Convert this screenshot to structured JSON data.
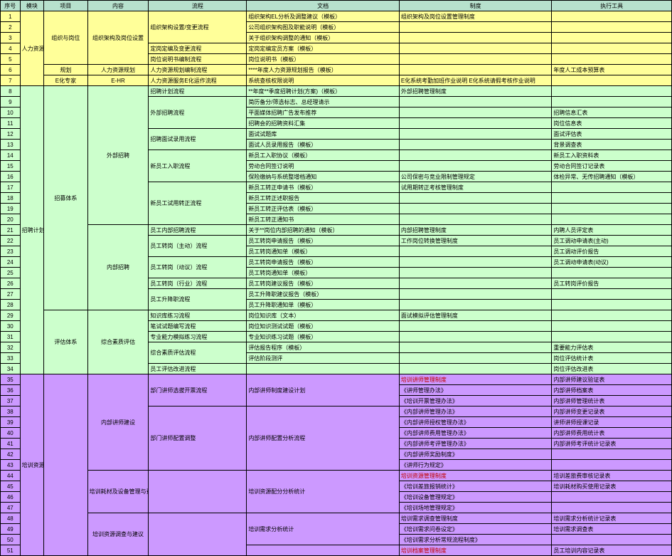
{
  "header": {
    "seq": "序号",
    "mod": "模块",
    "proj": "项目",
    "cont": "内容",
    "flow": "流程",
    "doc": "文档",
    "sys": "制度",
    "tool": "执行工具"
  },
  "colors": {
    "header_bg": "#b7e1cd",
    "yellow": "#ffff99",
    "green": "#ccffcc",
    "purple": "#cc99ff",
    "blue": "#cce5ff",
    "gray": "#d9d9d9",
    "red_text": "#c00000",
    "border": "#000000"
  },
  "blocks": {
    "block1": {
      "mod": "人力资源规划",
      "rows": [
        {
          "seq": "1",
          "proj": "组织与岗位",
          "cont": "组织架构及岗位设置",
          "flow": "组织架构设置/变更流程",
          "doc": "组织架构EL分析及调整建议（模板）",
          "sys": "组织架构及岗位设置管理制度",
          "tool": ""
        },
        {
          "seq": "2",
          "proj": "",
          "cont": "",
          "flow": "",
          "doc": "公司组织架构图及职能说明（模板）",
          "sys": "",
          "tool": ""
        },
        {
          "seq": "3",
          "proj": "",
          "cont": "",
          "flow": "",
          "doc": "关于组织架构调整的通知（模板）",
          "sys": "",
          "tool": ""
        },
        {
          "seq": "4",
          "proj": "",
          "cont": "",
          "flow": "定岗定编及变更流程",
          "doc": "定岗定编定员方案（模板）",
          "sys": "",
          "tool": ""
        },
        {
          "seq": "5",
          "proj": "",
          "cont": "",
          "flow": "岗位说明书编制流程",
          "doc": "岗位说明书（模板）",
          "sys": "",
          "tool": ""
        },
        {
          "seq": "6",
          "proj": "规划",
          "cont": "人力资源规划",
          "flow": "人力资源规划编制流程",
          "doc": "****年度人力资源规划报告（模板）",
          "sys": "",
          "tool": "年度人工成本预算表"
        },
        {
          "seq": "7",
          "proj": "E化专家",
          "cont": "E-HR",
          "flow": "人力资源服务E化运作流程",
          "doc": "系统查核权限说明",
          "sys": "E化系统考勤加班作业说明\nE化系统请假考核作业说明",
          "tool": ""
        }
      ]
    },
    "block2": {
      "mod": "招聘计划",
      "rows": [
        {
          "seq": "8",
          "proj": "招募体系",
          "cont": "外部招聘",
          "flow": "招聘计划流程",
          "doc": "**年度**季度招聘计划(方案)（模板）",
          "sys": "外部招聘管理制度",
          "tool": ""
        },
        {
          "seq": "9",
          "proj": "",
          "cont": "",
          "flow": "外部招聘流程",
          "doc": "简历备分/筛选标志、总经理请示",
          "sys": "",
          "tool": ""
        },
        {
          "seq": "10",
          "proj": "",
          "cont": "",
          "flow": "",
          "doc": "平面媒体招聘广告发布推荐",
          "sys": "",
          "tool": "招聘信息汇表"
        },
        {
          "seq": "11",
          "proj": "",
          "cont": "",
          "flow": "",
          "doc": "招聘会的招聘资料汇集",
          "sys": "",
          "tool": "岗位信息表"
        },
        {
          "seq": "12",
          "proj": "",
          "cont": "",
          "flow": "招聘面试录用流程",
          "doc": "面试试题库",
          "sys": "",
          "tool": "面试评估表"
        },
        {
          "seq": "13",
          "proj": "",
          "cont": "",
          "flow": "",
          "doc": "面试人员录用报告（模板）",
          "sys": "",
          "tool": "背景调查表"
        },
        {
          "seq": "14",
          "proj": "",
          "cont": "",
          "flow": "新员工入职流程",
          "doc": "新员工入职协议（模板）",
          "sys": "",
          "tool": "新员工入职资料表"
        },
        {
          "seq": "15",
          "proj": "",
          "cont": "",
          "flow": "",
          "doc": "劳动合同签订说明",
          "sys": "",
          "tool": "劳动合同签订记录表"
        },
        {
          "seq": "16",
          "proj": "",
          "cont": "",
          "flow": "",
          "doc": "保险缴纳与系统整增档通知",
          "sys": "公司保密与竞业限制管理规定",
          "tool": "体检异常、无传招聘通知（模板）"
        },
        {
          "seq": "17",
          "proj": "",
          "cont": "",
          "flow": "新员工试用转正流程",
          "doc": "新员工转正申请书（模板）",
          "sys": "试用期转正考核管理制度",
          "tool": ""
        },
        {
          "seq": "18",
          "proj": "",
          "cont": "",
          "flow": "",
          "doc": "新员工转正述职报告",
          "sys": "",
          "tool": ""
        },
        {
          "seq": "19",
          "proj": "",
          "cont": "",
          "flow": "",
          "doc": "新员工转正评估表（模板）",
          "sys": "",
          "tool": ""
        },
        {
          "seq": "20",
          "proj": "",
          "cont": "",
          "flow": "",
          "doc": "新员工转正通知书",
          "sys": "",
          "tool": ""
        },
        {
          "seq": "21",
          "proj": "",
          "cont": "内部招聘",
          "flow": "员工内部招聘流程",
          "doc": "关于**岗位内部招聘的通知（模板）",
          "sys": "内部招聘管理制度",
          "tool": "内聘人员评定表"
        },
        {
          "seq": "22",
          "proj": "",
          "cont": "",
          "flow": "员工转岗（主动）流程",
          "doc": "员工转岗申请报告（模板）",
          "sys": "工作岗位转换管理制度",
          "tool": "员工调动申请表(主动)"
        },
        {
          "seq": "23",
          "proj": "",
          "cont": "",
          "flow": "",
          "doc": "员工转岗通知单（模板）",
          "sys": "",
          "tool": "员工调动评价报告"
        },
        {
          "seq": "24",
          "proj": "",
          "cont": "",
          "flow": "员工转岗（动议）流程",
          "doc": "员工转岗申请报告（模板）",
          "sys": "",
          "tool": "员工调动申请表(动议)"
        },
        {
          "seq": "25",
          "proj": "",
          "cont": "",
          "flow": "",
          "doc": "员工转岗通知单（模板）",
          "sys": "",
          "tool": ""
        },
        {
          "seq": "26",
          "proj": "",
          "cont": "",
          "flow": "员工转岗（行业）流程",
          "doc": "员工转岗建议报告（模板）",
          "sys": "",
          "tool": "员工转岗评价报告"
        },
        {
          "seq": "27",
          "proj": "",
          "cont": "",
          "flow": "员工升降职流程",
          "doc": "员工升降职建议报告（模板）",
          "sys": "",
          "tool": ""
        },
        {
          "seq": "28",
          "proj": "",
          "cont": "",
          "flow": "",
          "doc": "员工升降职通知单（模板）",
          "sys": "",
          "tool": ""
        },
        {
          "seq": "29",
          "proj": "评估体系",
          "cont": "综合素质评估",
          "flow": "知识库练习流程",
          "doc": "岗位知识库（文本）",
          "sys": "面试模拟评估管理制度",
          "tool": ""
        },
        {
          "seq": "30",
          "proj": "",
          "cont": "",
          "flow": "笔试试题编写流程",
          "doc": "岗位知识测试试题（模板）",
          "sys": "",
          "tool": ""
        },
        {
          "seq": "31",
          "proj": "",
          "cont": "",
          "flow": "专业能力模拟练习流程",
          "doc": "专业知识练习试题（模板）",
          "sys": "",
          "tool": ""
        },
        {
          "seq": "32",
          "proj": "",
          "cont": "",
          "flow": "综合素质评估流程",
          "doc": "评估报告程序（模板）",
          "sys": "",
          "tool": "重要能力评估表"
        },
        {
          "seq": "33",
          "proj": "",
          "cont": "",
          "flow": "",
          "doc": "评估阶段测评",
          "sys": "",
          "tool": "岗位评估统计表"
        },
        {
          "seq": "34",
          "proj": "",
          "cont": "",
          "flow": "员工评估改进流程",
          "doc": "",
          "sys": "",
          "tool": "岗位评估改进表"
        }
      ]
    },
    "block3": {
      "mod": "培训资源体系",
      "rows": [
        {
          "seq": "35",
          "proj": "",
          "cont": "内部讲师建设",
          "flow": "部门讲师选拔开票流程",
          "doc": "内部讲师制度建设计划",
          "sys": "培训讲师管理制度",
          "sys_red": true,
          "tool": "内部讲师建议验证表"
        },
        {
          "seq": "36",
          "proj": "",
          "cont": "",
          "flow": "",
          "doc": "",
          "sys": "《讲师管理办法》",
          "tool": "内部讲师档案表"
        },
        {
          "seq": "37",
          "proj": "",
          "cont": "",
          "flow": "",
          "doc": "",
          "sys": "《培训开票管理办法》",
          "tool": "内部讲师管理统计表"
        },
        {
          "seq": "38",
          "proj": "",
          "cont": "",
          "flow": "部门讲师配置调整",
          "doc": "内部讲师配置分析流程",
          "sys": "《内部讲师管理办法》",
          "tool": "内部讲师变更记录表"
        },
        {
          "seq": "39",
          "proj": "",
          "cont": "",
          "flow": "",
          "doc": "",
          "sys": "《内部讲师授权管理办法》",
          "tool": "讲师讲师授课记录"
        },
        {
          "seq": "40",
          "proj": "",
          "cont": "",
          "flow": "",
          "doc": "",
          "sys": "《内部讲师费用管理办法》",
          "tool": "内部讲师费用统计表"
        },
        {
          "seq": "41",
          "proj": "",
          "cont": "",
          "flow": "",
          "doc": "",
          "sys": "《内部讲师考评管理办法》",
          "tool": "内部讲师考评统计记录表"
        },
        {
          "seq": "42",
          "proj": "",
          "cont": "",
          "flow": "",
          "doc": "",
          "sys": "《内部讲师奖励制度》",
          "tool": ""
        },
        {
          "seq": "43",
          "proj": "",
          "cont": "",
          "flow": "",
          "doc": "",
          "sys": "《讲师行为规定》",
          "tool": ""
        },
        {
          "seq": "44",
          "proj": "",
          "cont": "培训耗材及设备管理与费用",
          "flow": "",
          "doc": "培训资源配分分析统计",
          "sys": "培训资源管理制度",
          "sys_red": true,
          "tool": "培训差旅费审核记录表"
        },
        {
          "seq": "45",
          "proj": "",
          "cont": "",
          "flow": "",
          "doc": "",
          "sys": "《培训差旅报销统计》",
          "tool": "培训耗材购买使用记录表"
        },
        {
          "seq": "46",
          "proj": "",
          "cont": "",
          "flow": "",
          "doc": "",
          "sys": "《培训设备管理规定》",
          "tool": ""
        },
        {
          "seq": "47",
          "proj": "",
          "cont": "",
          "flow": "",
          "doc": "",
          "sys": "《培训场地管理规定》",
          "tool": ""
        },
        {
          "seq": "48",
          "proj": "",
          "cont": "培训资源调查与建议",
          "flow": "",
          "doc": "培训需求分析统计",
          "sys": "培训需求调查管理制度",
          "tool": "培训需求分析统计记录表"
        },
        {
          "seq": "49",
          "proj": "",
          "cont": "",
          "flow": "",
          "doc": "",
          "sys": "《培训需求问卷设定》",
          "tool": "培训需求调查表"
        },
        {
          "seq": "50",
          "proj": "",
          "cont": "",
          "flow": "",
          "doc": "",
          "sys": "《培训需求分析常规流程制度》",
          "tool": ""
        },
        {
          "seq": "51",
          "proj": "",
          "cont": "",
          "flow": "",
          "doc": "",
          "sys": "培训档案管理制度",
          "sys_red": true,
          "tool": "员工培训内容记录表"
        }
      ]
    }
  }
}
